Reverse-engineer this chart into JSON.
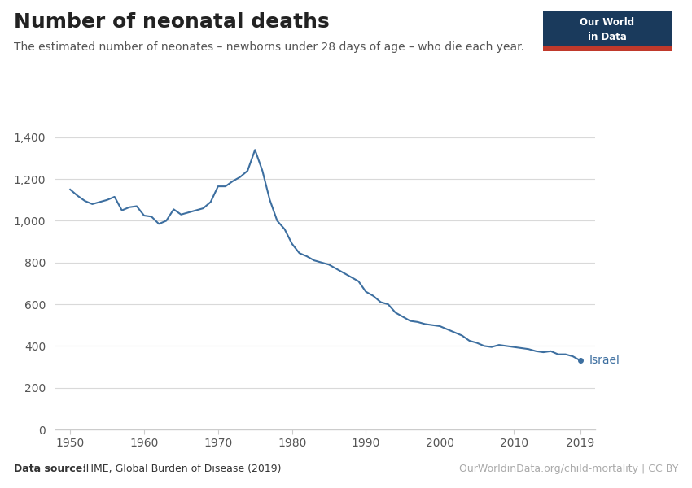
{
  "title": "Number of neonatal deaths",
  "subtitle": "The estimated number of neonates – newborns under 28 days of age – who die each year.",
  "datasource_bold": "Data source:",
  "datasource_normal": " IHME, Global Burden of Disease (2019)",
  "rights": "OurWorldinData.org/child-mortality | CC BY",
  "line_color": "#3d6fa0",
  "label": "Israel",
  "background_color": "#ffffff",
  "years": [
    1950,
    1951,
    1952,
    1953,
    1954,
    1955,
    1956,
    1957,
    1958,
    1959,
    1960,
    1961,
    1962,
    1963,
    1964,
    1965,
    1966,
    1967,
    1968,
    1969,
    1970,
    1971,
    1972,
    1973,
    1974,
    1975,
    1976,
    1977,
    1978,
    1979,
    1980,
    1981,
    1982,
    1983,
    1984,
    1985,
    1986,
    1987,
    1988,
    1989,
    1990,
    1991,
    1992,
    1993,
    1994,
    1995,
    1996,
    1997,
    1998,
    1999,
    2000,
    2001,
    2002,
    2003,
    2004,
    2005,
    2006,
    2007,
    2008,
    2009,
    2010,
    2011,
    2012,
    2013,
    2014,
    2015,
    2016,
    2017,
    2018,
    2019
  ],
  "values": [
    1150,
    1120,
    1095,
    1080,
    1090,
    1100,
    1115,
    1050,
    1065,
    1070,
    1025,
    1020,
    985,
    1000,
    1055,
    1030,
    1040,
    1050,
    1060,
    1090,
    1165,
    1165,
    1190,
    1210,
    1240,
    1340,
    1240,
    1100,
    1000,
    960,
    890,
    845,
    830,
    810,
    800,
    790,
    770,
    750,
    730,
    710,
    660,
    640,
    610,
    600,
    560,
    540,
    520,
    515,
    505,
    500,
    495,
    480,
    465,
    450,
    425,
    415,
    400,
    395,
    405,
    400,
    395,
    390,
    385,
    375,
    370,
    375,
    360,
    360,
    350,
    330
  ],
  "ylim": [
    0,
    1450
  ],
  "yticks": [
    0,
    200,
    400,
    600,
    800,
    1000,
    1200,
    1400
  ],
  "ytick_labels": [
    "0",
    "200",
    "400",
    "600",
    "800",
    "1,000",
    "1,200",
    "1,400"
  ],
  "xlim": [
    1948,
    2021
  ],
  "xticks": [
    1950,
    1960,
    1970,
    1980,
    1990,
    2000,
    2010,
    2019
  ],
  "logo_bg": "#1a3a5c",
  "logo_red": "#c0392b",
  "grid_color": "#d9d9d9",
  "spine_color": "#cccccc"
}
